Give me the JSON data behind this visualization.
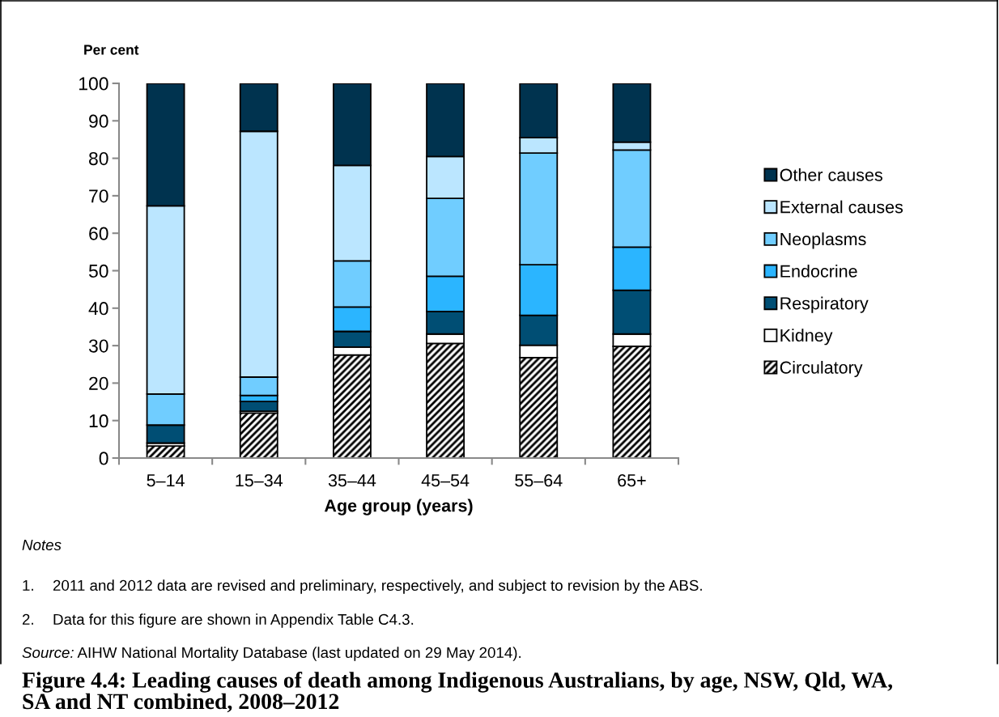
{
  "chart_data": {
    "type": "bar",
    "stacked": true,
    "title": "Figure 4.4: Leading causes of death among Indigenous Australians, by age, NSW, Qld, WA, SA and NT combined, 2008–2012",
    "xlabel": "Age group (years)",
    "ylabel": "Per cent",
    "categories": [
      "5–14",
      "15–34",
      "35–44",
      "45–54",
      "55–64",
      "65+"
    ],
    "series": [
      {
        "name": "Circulatory",
        "color": "#000000",
        "values": [
          3.2,
          12.0,
          27.5,
          30.6,
          26.8,
          29.8
        ]
      },
      {
        "name": "Kidney",
        "color": "#ffffff",
        "values": [
          0.8,
          0.5,
          2.1,
          2.5,
          3.3,
          3.3
        ]
      },
      {
        "name": "Respiratory",
        "color": "#004e74",
        "values": [
          4.8,
          2.6,
          4.2,
          6.0,
          8.0,
          11.7
        ]
      },
      {
        "name": "Endocrine",
        "color": "#2bb5ff",
        "values": [
          null,
          1.6,
          6.5,
          9.4,
          13.5,
          11.5
        ]
      },
      {
        "name": "Neoplasms",
        "color": "#70cdff",
        "values": [
          8.3,
          4.9,
          12.3,
          20.8,
          29.8,
          25.9
        ]
      },
      {
        "name": "External causes",
        "color": "#bbe6ff",
        "values": [
          50.2,
          65.6,
          25.5,
          11.2,
          4.1,
          2.1
        ]
      },
      {
        "name": "Other causes",
        "color": "#00334f",
        "values": [
          32.7,
          12.8,
          21.9,
          19.5,
          14.5,
          15.7
        ]
      }
    ],
    "ylim": [
      0,
      100
    ],
    "yticks": [
      0,
      10,
      20,
      30,
      40,
      50,
      60,
      70,
      80,
      90,
      100
    ],
    "legend": "right",
    "annotations": [
      "Notes",
      "1. 2011 and 2012 data are revised and preliminary, respectively, and subject to revision by the ABS.",
      "2. Data for this figure are shown in Appendix Table C4.3.",
      "Source: AIHW National Mortality Database (last updated on 29 May 2014)."
    ]
  }
}
